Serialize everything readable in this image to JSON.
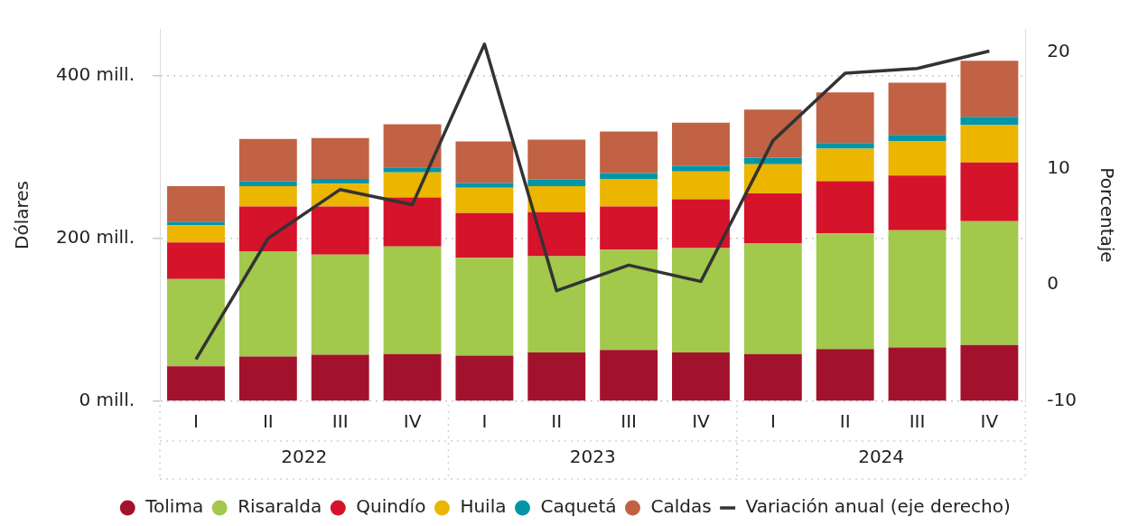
{
  "chart_data": {
    "type": "bar",
    "stacked": true,
    "categories": [
      "I",
      "II",
      "III",
      "IV",
      "I",
      "II",
      "III",
      "IV",
      "I",
      "II",
      "III",
      "IV"
    ],
    "annotations": [
      "2022",
      "2023",
      "2024"
    ],
    "ylabel": "Dólares",
    "y2label": "Porcentaje",
    "ylim": [
      0,
      457
    ],
    "yticks": [
      {
        "value": 0,
        "label": "0 mill."
      },
      {
        "value": 200,
        "label": "200 mill."
      },
      {
        "value": 400,
        "label": "400 mill."
      }
    ],
    "y2lim": [
      -10,
      22
    ],
    "y2ticks": [
      -10,
      0,
      10,
      20
    ],
    "grid": "y",
    "legend": "bottom",
    "marker": "none",
    "series": [
      {
        "name": "Tolima",
        "color": "#a3122d",
        "values": [
          43,
          55,
          57,
          58,
          56,
          60,
          63,
          60,
          58,
          64,
          66,
          69
        ]
      },
      {
        "name": "Risaralda",
        "color": "#a2c84c",
        "values": [
          107,
          129,
          123,
          132,
          120,
          118,
          123,
          128,
          136,
          142,
          144,
          152
        ]
      },
      {
        "name": "Quindío",
        "color": "#d5132b",
        "values": [
          45,
          55,
          59,
          60,
          55,
          54,
          53,
          60,
          61,
          64,
          67,
          72
        ]
      },
      {
        "name": "Huila",
        "color": "#ecb500",
        "values": [
          21,
          25,
          28,
          31,
          31,
          32,
          34,
          34,
          36,
          40,
          42,
          46
        ]
      },
      {
        "name": "Caquetá",
        "color": "#0096a8",
        "values": [
          4,
          6,
          6,
          6,
          6,
          8,
          7,
          7,
          8,
          7,
          8,
          10
        ]
      },
      {
        "name": "Caldas",
        "color": "#c16244",
        "values": [
          44,
          52,
          50,
          53,
          51,
          49,
          51,
          53,
          59,
          62,
          64,
          69
        ]
      },
      {
        "name": "Variación anual (eje derecho)",
        "type": "line",
        "axis": "y2",
        "color": "#333333",
        "line_style": "solid",
        "values": [
          -6.4,
          4.0,
          8.2,
          6.9,
          20.7,
          -0.5,
          1.7,
          0.3,
          12.4,
          18.2,
          18.6,
          20.1
        ]
      }
    ]
  }
}
